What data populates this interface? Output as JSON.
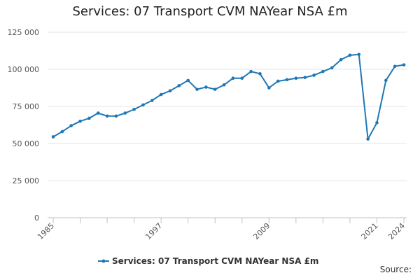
{
  "chart_data": {
    "type": "line",
    "title": "Services: 07 Transport CVM NAYear NSA £m",
    "xlabel": "",
    "ylabel": "",
    "xlim": [
      1985,
      2024
    ],
    "ylim": [
      0,
      125000
    ],
    "y_ticks": [
      {
        "value": 0,
        "label": "0"
      },
      {
        "value": 25000,
        "label": "25 000"
      },
      {
        "value": 50000,
        "label": "50 000"
      },
      {
        "value": 75000,
        "label": "75 000"
      },
      {
        "value": 100000,
        "label": "100 000"
      },
      {
        "value": 125000,
        "label": "125 000"
      }
    ],
    "x_tick_labels": [
      "1985",
      "1997",
      "2009",
      "2021",
      "2024"
    ],
    "grid": true,
    "legend_position": "bottom",
    "series": [
      {
        "name": "Services: 07 Transport CVM NAYear NSA £m",
        "color": "#1f77b4",
        "x": [
          1985,
          1986,
          1987,
          1988,
          1989,
          1990,
          1991,
          1992,
          1993,
          1994,
          1995,
          1996,
          1997,
          1998,
          1999,
          2000,
          2001,
          2002,
          2003,
          2004,
          2005,
          2006,
          2007,
          2008,
          2009,
          2010,
          2011,
          2012,
          2013,
          2014,
          2015,
          2016,
          2017,
          2018,
          2019,
          2020,
          2021,
          2022,
          2023,
          2024
        ],
        "values": [
          54500,
          58000,
          62000,
          65000,
          67000,
          70500,
          68500,
          68500,
          70500,
          73000,
          76000,
          79000,
          83000,
          85500,
          89000,
          92500,
          86500,
          88000,
          86500,
          89500,
          94000,
          94000,
          98500,
          97000,
          87500,
          92000,
          93000,
          94000,
          94500,
          96000,
          98500,
          101000,
          106500,
          109500,
          110000,
          53000,
          64000,
          92500,
          102000,
          103000
        ]
      }
    ]
  },
  "source_label": "Source:"
}
